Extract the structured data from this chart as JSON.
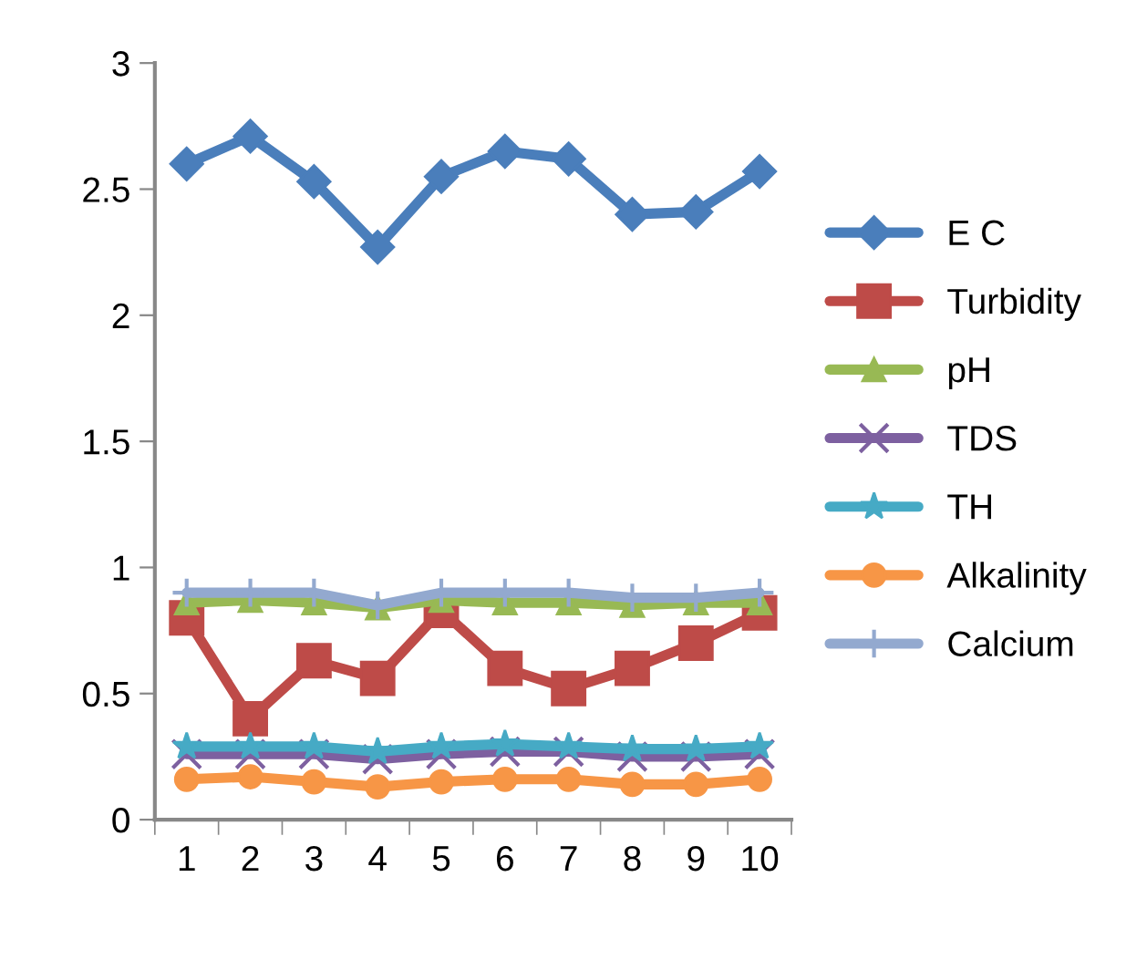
{
  "chart_data": {
    "type": "line",
    "categories": [
      "1",
      "2",
      "3",
      "4",
      "5",
      "6",
      "7",
      "8",
      "9",
      "10"
    ],
    "ylim": [
      0,
      3
    ],
    "yticks": [
      0,
      0.5,
      1,
      1.5,
      2,
      2.5,
      3
    ],
    "grid": false,
    "legend": "right",
    "line_style": "solid",
    "series": [
      {
        "name": "E C",
        "color": "#4a7ebb",
        "marker": "diamond",
        "values": [
          2.6,
          2.71,
          2.53,
          2.27,
          2.55,
          2.65,
          2.62,
          2.4,
          2.41,
          2.57
        ]
      },
      {
        "name": "Turbidity",
        "color": "#be4b48",
        "marker": "square",
        "values": [
          0.8,
          0.4,
          0.63,
          0.56,
          0.83,
          0.6,
          0.52,
          0.6,
          0.7,
          0.82
        ]
      },
      {
        "name": "pH",
        "color": "#98b954",
        "marker": "triangle",
        "values": [
          0.86,
          0.87,
          0.86,
          0.84,
          0.87,
          0.86,
          0.86,
          0.85,
          0.86,
          0.86
        ]
      },
      {
        "name": "TDS",
        "color": "#7d60a0",
        "marker": "cross",
        "values": [
          0.26,
          0.26,
          0.26,
          0.24,
          0.26,
          0.27,
          0.27,
          0.25,
          0.25,
          0.26
        ]
      },
      {
        "name": "TH",
        "color": "#46aac5",
        "marker": "star",
        "values": [
          0.29,
          0.29,
          0.29,
          0.27,
          0.29,
          0.3,
          0.29,
          0.28,
          0.28,
          0.29
        ]
      },
      {
        "name": "Alkalinity",
        "color": "#f79646",
        "marker": "circle",
        "values": [
          0.16,
          0.17,
          0.15,
          0.13,
          0.15,
          0.16,
          0.16,
          0.14,
          0.14,
          0.16
        ]
      },
      {
        "name": "Calcium",
        "color": "#93a9cf",
        "marker": "plus",
        "values": [
          0.9,
          0.9,
          0.9,
          0.85,
          0.9,
          0.9,
          0.9,
          0.88,
          0.88,
          0.9
        ]
      }
    ]
  }
}
